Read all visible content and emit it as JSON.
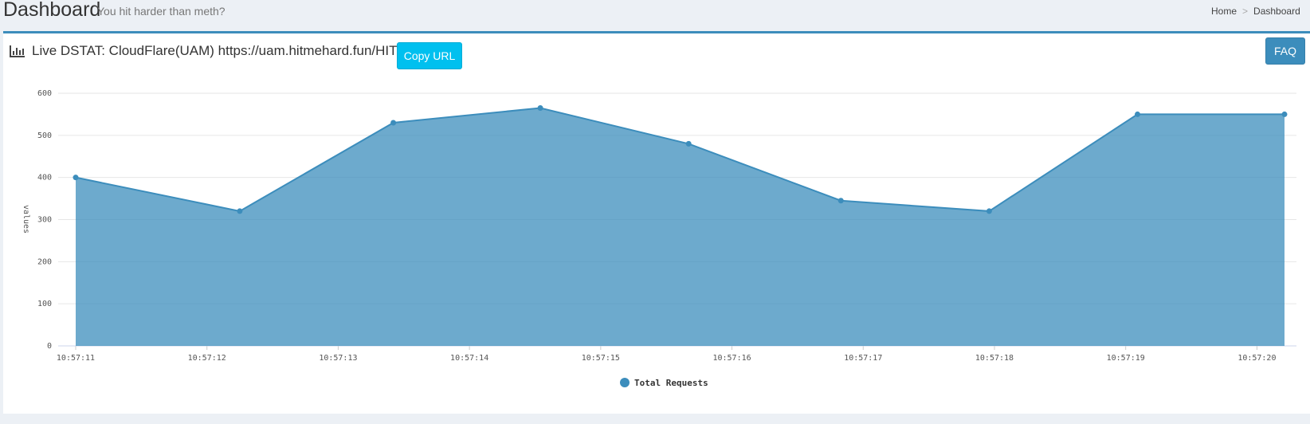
{
  "header": {
    "title": "Dashboard",
    "subtitle": "You hit harder than meth?",
    "breadcrumb": [
      "Home",
      ">",
      "Dashboard"
    ]
  },
  "panel": {
    "heading": "Live DSTAT: CloudFlare(UAM) https://uam.hitmehard.fun/HIT",
    "copy_button": "Copy URL",
    "faq_button": "FAQ"
  },
  "chart_data": {
    "type": "area",
    "y_label": "values",
    "x": [
      11,
      12.25,
      13.42,
      14.54,
      15.67,
      16.83,
      17.96,
      19.09,
      20.21
    ],
    "series": [
      {
        "name": "Total Requests",
        "color": "#3c8dbc",
        "values": [
          400,
          320,
          530,
          565,
          480,
          345,
          320,
          550,
          550
        ]
      }
    ],
    "xlim": [
      11,
      20.21
    ],
    "xticks": [
      {
        "value": 11,
        "label": "10:57:11"
      },
      {
        "value": 12,
        "label": "10:57:12"
      },
      {
        "value": 13,
        "label": "10:57:13"
      },
      {
        "value": 14,
        "label": "10:57:14"
      },
      {
        "value": 15,
        "label": "10:57:15"
      },
      {
        "value": 16,
        "label": "10:57:16"
      },
      {
        "value": 17,
        "label": "10:57:17"
      },
      {
        "value": 18,
        "label": "10:57:18"
      },
      {
        "value": 19,
        "label": "10:57:19"
      },
      {
        "value": 20,
        "label": "10:57:20"
      }
    ],
    "ylim": [
      0,
      600
    ],
    "yticks": [
      0,
      100,
      200,
      300,
      400,
      500,
      600
    ],
    "grid": true
  }
}
